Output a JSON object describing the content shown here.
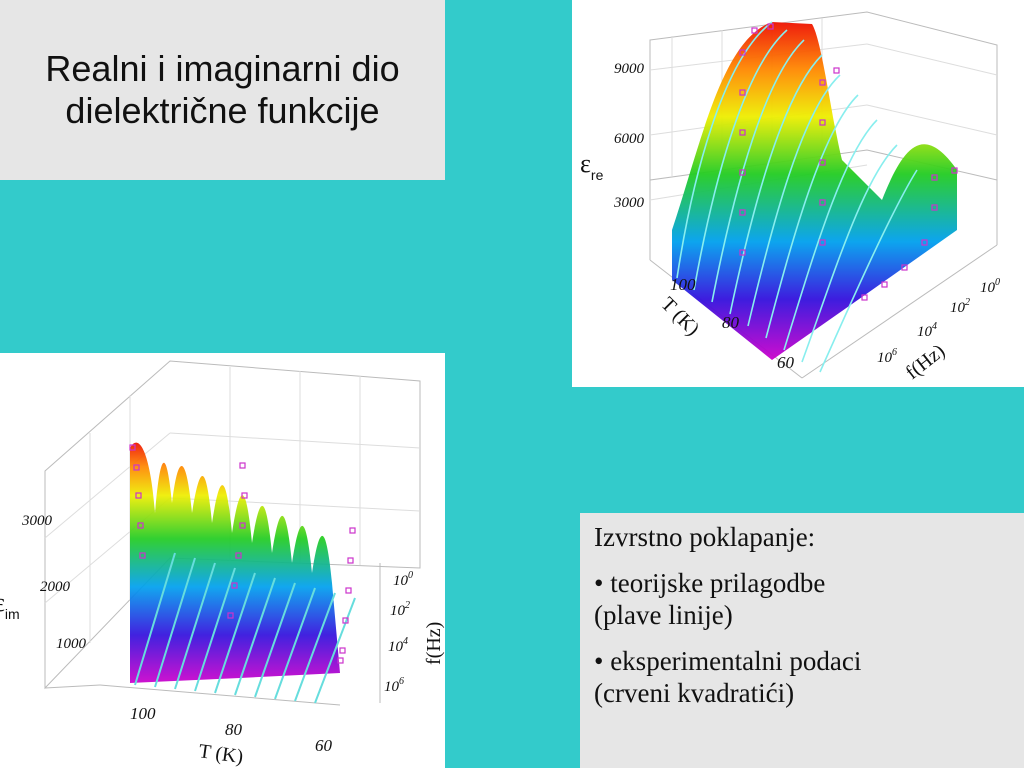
{
  "title": {
    "line1": "Realni i imaginarni dio",
    "line2": "dielektrične funkcije"
  },
  "top_plot": {
    "z_label": "ε",
    "z_label_sub": "re",
    "z_ticks": [
      "9000",
      "6000",
      "3000"
    ],
    "t_label": "T (K)",
    "t_ticks": [
      "100",
      "80",
      "60"
    ],
    "f_label": "f(Hz)",
    "f_ticks": [
      {
        "base": "10",
        "exp": "0"
      },
      {
        "base": "10",
        "exp": "2"
      },
      {
        "base": "10",
        "exp": "4"
      },
      {
        "base": "10",
        "exp": "6"
      }
    ]
  },
  "bottom_plot": {
    "z_label": "ε",
    "z_label_sub": "im",
    "z_ticks": [
      "3000",
      "2000",
      "1000"
    ],
    "t_label": "T (K)",
    "t_ticks": [
      "100",
      "80",
      "60"
    ],
    "f_label": "f(Hz)",
    "f_ticks": [
      {
        "base": "10",
        "exp": "0"
      },
      {
        "base": "10",
        "exp": "2"
      },
      {
        "base": "10",
        "exp": "4"
      },
      {
        "base": "10",
        "exp": "6"
      }
    ]
  },
  "legend": {
    "heading": "Izvrstno poklapanje:",
    "item1_line1": "• teorijske prilagodbe",
    "item1_line2": "(plave linije)",
    "item2_line1": "• eksperimentalni podaci",
    "item2_line2": "(crveni kvadratići)"
  },
  "colors": {
    "background": "#33cbcb",
    "panel": "#e6e6e6",
    "marker": "#cc33cc",
    "fit_line": "#66dddd"
  }
}
